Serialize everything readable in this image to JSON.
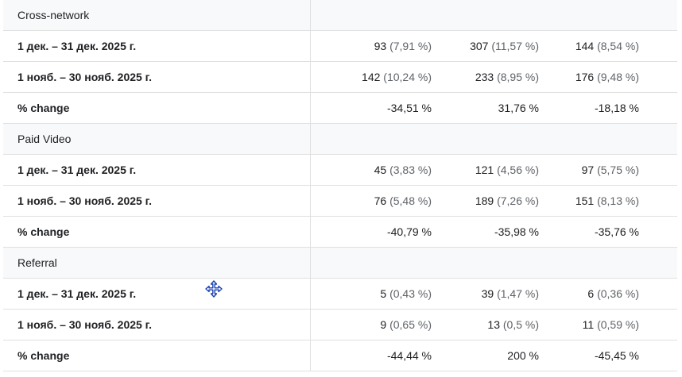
{
  "groups": [
    {
      "name": "Cross-network",
      "rows": [
        {
          "label": "1 дек. – 31 дек. 2025 г.",
          "cells": [
            {
              "v": "93",
              "p": "(7,91 %)"
            },
            {
              "v": "307",
              "p": "(11,57 %)"
            },
            {
              "v": "144",
              "p": "(8,54 %)"
            }
          ]
        },
        {
          "label": "1 нояб. – 30 нояб. 2025 г.",
          "cells": [
            {
              "v": "142",
              "p": "(10,24 %)"
            },
            {
              "v": "233",
              "p": "(8,95 %)"
            },
            {
              "v": "176",
              "p": "(9,48 %)"
            }
          ]
        },
        {
          "label": "% change",
          "cells": [
            {
              "v": "-34,51 %",
              "p": ""
            },
            {
              "v": "31,76 %",
              "p": ""
            },
            {
              "v": "-18,18 %",
              "p": ""
            }
          ]
        }
      ]
    },
    {
      "name": "Paid Video",
      "rows": [
        {
          "label": "1 дек. – 31 дек. 2025 г.",
          "cells": [
            {
              "v": "45",
              "p": "(3,83 %)"
            },
            {
              "v": "121",
              "p": "(4,56 %)"
            },
            {
              "v": "97",
              "p": "(5,75 %)"
            }
          ]
        },
        {
          "label": "1 нояб. – 30 нояб. 2025 г.",
          "cells": [
            {
              "v": "76",
              "p": "(5,48 %)"
            },
            {
              "v": "189",
              "p": "(7,26 %)"
            },
            {
              "v": "151",
              "p": "(8,13 %)"
            }
          ]
        },
        {
          "label": "% change",
          "cells": [
            {
              "v": "-40,79 %",
              "p": ""
            },
            {
              "v": "-35,98 %",
              "p": ""
            },
            {
              "v": "-35,76 %",
              "p": ""
            }
          ]
        }
      ]
    },
    {
      "name": "Referral",
      "rows": [
        {
          "label": "1 дек. – 31 дек. 2025 г.",
          "cells": [
            {
              "v": "5",
              "p": "(0,43 %)"
            },
            {
              "v": "39",
              "p": "(1,47 %)"
            },
            {
              "v": "6",
              "p": "(0,36 %)"
            }
          ]
        },
        {
          "label": "1 нояб. – 30 нояб. 2025 г.",
          "cells": [
            {
              "v": "9",
              "p": "(0,65 %)"
            },
            {
              "v": "13",
              "p": "(0,5 %)"
            },
            {
              "v": "11",
              "p": "(0,59 %)"
            }
          ]
        },
        {
          "label": "% change",
          "cells": [
            {
              "v": "-44,44 %",
              "p": ""
            },
            {
              "v": "200 %",
              "p": ""
            },
            {
              "v": "-45,45 %",
              "p": ""
            }
          ]
        }
      ]
    }
  ],
  "cursor_icon": "move-cursor-icon",
  "colors": {
    "divider": "#e0e0e0",
    "group_bg": "#f8f9fa",
    "text": "#202124",
    "secondary": "#5f6368",
    "cursor": "#1a3fb0"
  }
}
